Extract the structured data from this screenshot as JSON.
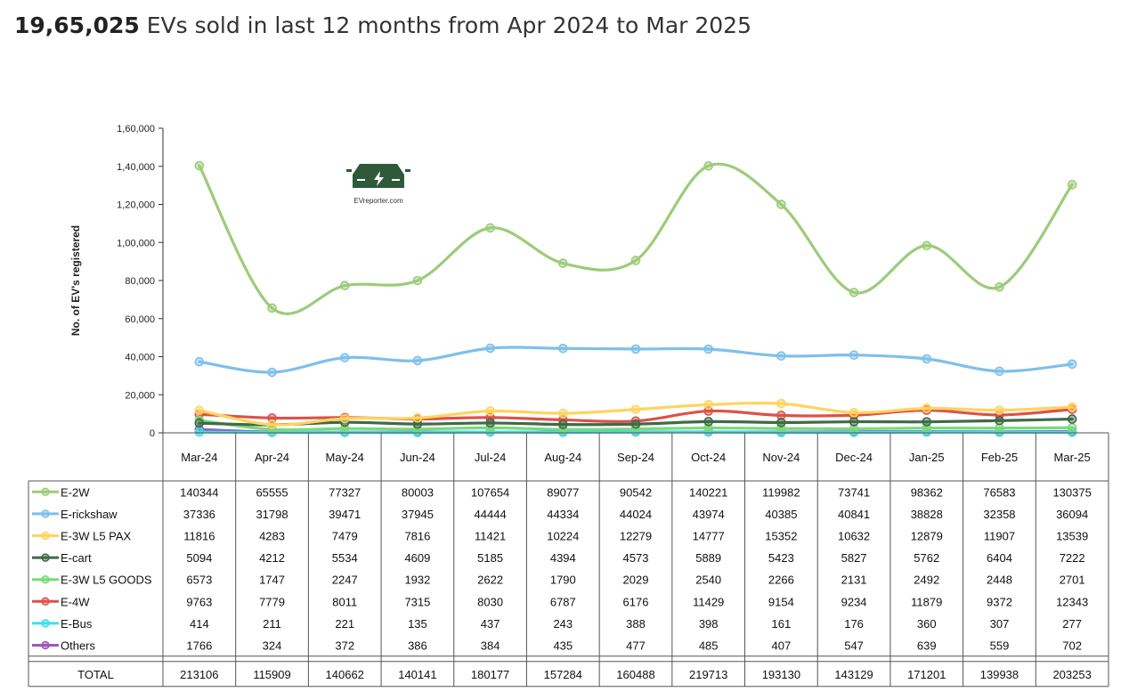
{
  "headline": {
    "number": "19,65,025",
    "text": " EVs sold in last 12 months from Apr 2024 to Mar 2025"
  },
  "logo": {
    "icon": "ev-car-icon",
    "text": "EVreporter.com",
    "color": "#2e5a3a"
  },
  "chart_data": {
    "type": "line",
    "ylabel": "No. of EV's registered",
    "ylim": [
      0,
      160000
    ],
    "yticks": [
      "0",
      "20,000",
      "40,000",
      "60,000",
      "80,000",
      "1,00,000",
      "1,20,000",
      "1,40,000",
      "1,60,000"
    ],
    "categories": [
      "Mar-24",
      "Apr-24",
      "May-24",
      "Jun-24",
      "Jul-24",
      "Aug-24",
      "Sep-24",
      "Oct-24",
      "Nov-24",
      "Dec-24",
      "Jan-25",
      "Feb-25",
      "Mar-25"
    ],
    "grid": false,
    "legend": "data-table",
    "series": [
      {
        "name": "E-2W",
        "color": "#9ccc7a",
        "values": [
          140344,
          65555,
          77327,
          80003,
          107654,
          89077,
          90542,
          140221,
          119982,
          73741,
          98362,
          76583,
          130375
        ]
      },
      {
        "name": "E-rickshaw",
        "color": "#7ec0ea",
        "values": [
          37336,
          31798,
          39471,
          37945,
          44444,
          44334,
          44024,
          43974,
          40385,
          40841,
          38828,
          32358,
          36094
        ]
      },
      {
        "name": "E-3W L5 PAX",
        "color": "#ffd45e",
        "values": [
          11816,
          4283,
          7479,
          7816,
          11421,
          10224,
          12279,
          14777,
          15352,
          10632,
          12879,
          11907,
          13539
        ]
      },
      {
        "name": "E-cart",
        "color": "#3e6b48",
        "values": [
          5094,
          4212,
          5534,
          4609,
          5185,
          4394,
          4573,
          5889,
          5423,
          5827,
          5762,
          6404,
          7222
        ]
      },
      {
        "name": "E-3W L5 GOODS",
        "color": "#7bd97b",
        "values": [
          6573,
          1747,
          2247,
          1932,
          2622,
          1790,
          2029,
          2540,
          2266,
          2131,
          2492,
          2448,
          2701
        ]
      },
      {
        "name": "E-4W",
        "color": "#d9534a",
        "values": [
          9763,
          7779,
          8011,
          7315,
          8030,
          6787,
          6176,
          11429,
          9154,
          9234,
          11879,
          9372,
          12343
        ]
      },
      {
        "name": "E-Bus",
        "color": "#3de0e8",
        "values": [
          414,
          211,
          221,
          135,
          437,
          243,
          388,
          398,
          161,
          176,
          360,
          307,
          277
        ]
      },
      {
        "name": "Others",
        "color": "#9b59b6",
        "values": [
          1766,
          324,
          372,
          386,
          384,
          435,
          477,
          485,
          407,
          547,
          639,
          559,
          702
        ]
      }
    ],
    "total": {
      "name": "TOTAL",
      "values": [
        213106,
        115909,
        140662,
        140141,
        180177,
        157284,
        160488,
        219713,
        193130,
        143129,
        171201,
        139938,
        203253
      ]
    }
  }
}
